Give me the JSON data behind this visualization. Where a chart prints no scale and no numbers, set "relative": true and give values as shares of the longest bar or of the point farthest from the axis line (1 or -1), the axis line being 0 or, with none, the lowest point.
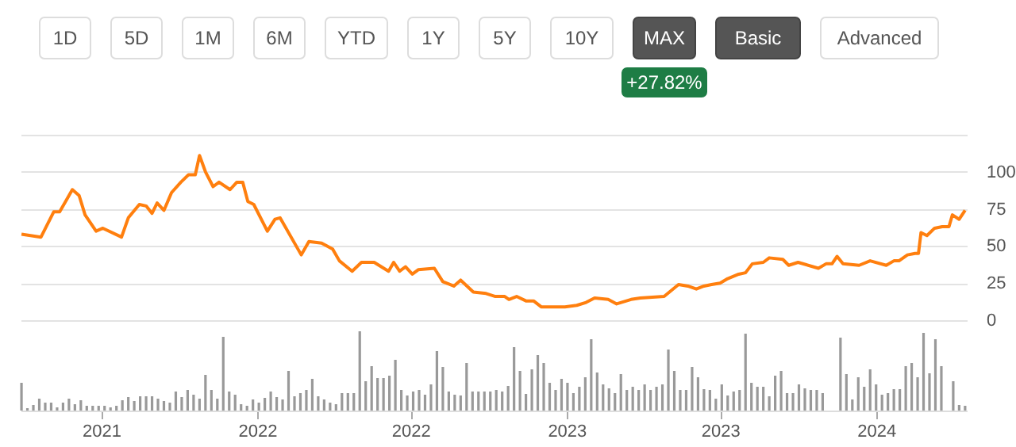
{
  "chart_data": [
    {
      "type": "line",
      "annotations": [
        "1D",
        "5D",
        "1M",
        "6M",
        "YTD",
        "1Y",
        "5Y",
        "10Y",
        "MAX",
        "Basic",
        "Advanced",
        "+27.82%"
      ],
      "x": [
        "2021-03-29",
        "2021-04-21",
        "2021-05-06",
        "2021-05-13",
        "2021-05-28",
        "2021-06-05",
        "2021-06-12",
        "2021-06-25",
        "2021-07-03",
        "2021-07-25",
        "2021-08-02",
        "2021-08-15",
        "2021-08-23",
        "2021-08-30",
        "2021-09-05",
        "2021-09-13",
        "2021-09-22",
        "2021-10-03",
        "2021-10-12",
        "2021-10-20",
        "2021-10-25",
        "2021-11-01",
        "2021-11-10",
        "2021-11-17",
        "2021-11-30",
        "2021-12-08",
        "2021-12-15",
        "2021-12-21",
        "2021-12-28",
        "2022-01-13",
        "2022-01-22",
        "2022-01-28",
        "2022-02-22",
        "2022-03-03",
        "2022-03-18",
        "2022-03-31",
        "2022-04-08",
        "2022-04-23",
        "2022-05-04",
        "2022-05-19",
        "2022-06-05",
        "2022-06-11",
        "2022-06-18",
        "2022-06-25",
        "2022-07-03",
        "2022-07-10",
        "2022-07-29",
        "2022-08-08",
        "2022-08-21",
        "2022-08-29",
        "2022-09-13",
        "2022-09-28",
        "2022-10-09",
        "2022-10-20",
        "2022-10-25",
        "2022-11-03",
        "2022-11-14",
        "2022-11-23",
        "2022-12-02",
        "2022-12-21",
        "2022-12-30",
        "2023-01-13",
        "2023-01-24",
        "2023-02-03",
        "2023-02-19",
        "2023-03-01",
        "2023-03-18",
        "2023-03-29",
        "2023-04-26",
        "2023-05-13",
        "2023-05-24",
        "2023-06-03",
        "2023-06-12",
        "2023-06-21",
        "2023-07-01",
        "2023-07-10",
        "2023-07-23",
        "2023-07-31",
        "2023-08-08",
        "2023-08-21",
        "2023-08-28",
        "2023-09-13",
        "2023-09-20",
        "2023-10-01",
        "2023-10-25",
        "2023-11-03",
        "2023-11-10",
        "2023-11-16",
        "2023-11-23",
        "2023-12-12",
        "2023-12-25",
        "2024-01-13",
        "2024-01-22",
        "2024-01-28",
        "2024-02-07",
        "2024-02-16",
        "2024-02-20",
        "2024-02-23",
        "2024-03-01",
        "2024-03-10",
        "2024-03-19",
        "2024-03-27",
        "2024-03-31",
        "2024-04-08",
        "2024-04-15"
      ],
      "series": [
        {
          "color": "#ff7f0e",
          "values": [
            58,
            56,
            73,
            73,
            88,
            84,
            71,
            60,
            62,
            56,
            69,
            78,
            77,
            72,
            79,
            74,
            86,
            93,
            98,
            98,
            111,
            100,
            90,
            93,
            88,
            93,
            93,
            80,
            78,
            60,
            68,
            69,
            44,
            53,
            52,
            48,
            40,
            33,
            39,
            39,
            33,
            39,
            33,
            36,
            31,
            34,
            35,
            26,
            23,
            27,
            19,
            18,
            16,
            16,
            14,
            16,
            13,
            13,
            9,
            9,
            9,
            10,
            12,
            15,
            14,
            11,
            14,
            15,
            16,
            24,
            23,
            21,
            23,
            24,
            25,
            28,
            31,
            32,
            38,
            39,
            42,
            41,
            37,
            39,
            35,
            38,
            38,
            43,
            38,
            37,
            40,
            37,
            40,
            40,
            44,
            45,
            45,
            59,
            57,
            62,
            63,
            63,
            71,
            68,
            74
          ]
        }
      ],
      "xlim": [
        "2021-03-28",
        "2024-04-17"
      ],
      "ylim": [
        0,
        125
      ],
      "yticks": [
        0,
        25,
        50,
        75,
        100,
        {
          "value": 125,
          "label": null
        }
      ],
      "grid": "y",
      "tick_labels": "y"
    },
    {
      "type": "bar",
      "relative": true,
      "xlim": [
        "2021-03-28",
        "2024-04-17"
      ],
      "xticks": [
        {
          "value": "2021-07-01",
          "label": "2021"
        },
        {
          "value": "2022-01-01",
          "label": "2022"
        },
        {
          "value": "2022-07-01",
          "label": "2022"
        },
        {
          "value": "2023-01-01",
          "label": "2023"
        },
        {
          "value": "2023-07-01",
          "label": "2023"
        },
        {
          "value": "2024-01-01",
          "label": "2024"
        }
      ],
      "tick_labels": "x",
      "x": [
        "2021-03-29",
        "2021-04-05",
        "2021-04-12",
        "2021-04-19",
        "2021-04-26",
        "2021-05-03",
        "2021-05-10",
        "2021-05-17",
        "2021-05-24",
        "2021-05-31",
        "2021-06-07",
        "2021-06-14",
        "2021-06-21",
        "2021-06-28",
        "2021-07-05",
        "2021-07-12",
        "2021-07-19",
        "2021-07-26",
        "2021-08-02",
        "2021-08-09",
        "2021-08-16",
        "2021-08-23",
        "2021-08-30",
        "2021-09-06",
        "2021-09-13",
        "2021-09-20",
        "2021-09-27",
        "2021-10-04",
        "2021-10-11",
        "2021-10-18",
        "2021-10-25",
        "2021-11-01",
        "2021-11-08",
        "2021-11-15",
        "2021-11-22",
        "2021-11-29",
        "2021-12-06",
        "2021-12-13",
        "2021-12-20",
        "2021-12-27",
        "2022-01-03",
        "2022-01-10",
        "2022-01-17",
        "2022-01-24",
        "2022-01-31",
        "2022-02-07",
        "2022-02-14",
        "2022-02-21",
        "2022-02-28",
        "2022-03-07",
        "2022-03-14",
        "2022-03-21",
        "2022-03-28",
        "2022-04-04",
        "2022-04-11",
        "2022-04-18",
        "2022-04-25",
        "2022-05-02",
        "2022-05-09",
        "2022-05-16",
        "2022-05-23",
        "2022-05-30",
        "2022-06-06",
        "2022-06-13",
        "2022-06-20",
        "2022-06-27",
        "2022-07-04",
        "2022-07-11",
        "2022-07-18",
        "2022-07-25",
        "2022-08-01",
        "2022-08-08",
        "2022-08-15",
        "2022-08-22",
        "2022-08-29",
        "2022-09-05",
        "2022-09-12",
        "2022-09-19",
        "2022-09-26",
        "2022-10-03",
        "2022-10-10",
        "2022-10-17",
        "2022-10-24",
        "2022-10-31",
        "2022-11-07",
        "2022-11-14",
        "2022-11-21",
        "2022-11-28",
        "2022-12-05",
        "2022-12-12",
        "2022-12-19",
        "2022-12-26",
        "2023-01-02",
        "2023-01-09",
        "2023-01-16",
        "2023-01-23",
        "2023-01-30",
        "2023-02-06",
        "2023-02-13",
        "2023-02-20",
        "2023-02-27",
        "2023-03-06",
        "2023-03-13",
        "2023-03-20",
        "2023-03-27",
        "2023-04-03",
        "2023-04-10",
        "2023-04-17",
        "2023-04-24",
        "2023-05-01",
        "2023-05-08",
        "2023-05-15",
        "2023-05-22",
        "2023-05-29",
        "2023-06-05",
        "2023-06-12",
        "2023-06-19",
        "2023-06-26",
        "2023-07-03",
        "2023-07-10",
        "2023-07-17",
        "2023-07-24",
        "2023-07-31",
        "2023-08-07",
        "2023-08-14",
        "2023-08-21",
        "2023-08-28",
        "2023-09-04",
        "2023-09-11",
        "2023-09-18",
        "2023-09-25",
        "2023-10-02",
        "2023-10-09",
        "2023-10-16",
        "2023-10-23",
        "2023-10-30",
        "2023-11-06",
        "2023-11-13",
        "2023-11-20",
        "2023-11-27",
        "2023-12-04",
        "2023-12-11",
        "2023-12-18",
        "2023-12-25",
        "2024-01-01",
        "2024-01-08",
        "2024-01-15",
        "2024-01-22",
        "2024-01-29",
        "2024-02-05",
        "2024-02-12",
        "2024-02-19",
        "2024-02-26",
        "2024-03-04",
        "2024-03-11",
        "2024-03-18",
        "2024-03-25",
        "2024-04-01",
        "2024-04-08",
        "2024-04-15"
      ],
      "series": [
        {
          "color": "#999999",
          "values": [
            0.35,
            0.03,
            0.07,
            0.15,
            0.1,
            0.1,
            0.04,
            0.1,
            0.15,
            0.08,
            0.13,
            0.06,
            0.06,
            0.06,
            0.06,
            0.04,
            0.06,
            0.13,
            0.17,
            0.12,
            0.18,
            0.18,
            0.18,
            0.15,
            0.12,
            0.1,
            0.24,
            0.17,
            0.26,
            0.2,
            0.15,
            0.45,
            0.26,
            0.15,
            0.93,
            0.24,
            0.2,
            0.08,
            0.06,
            0.14,
            0.1,
            0.16,
            0.24,
            0.17,
            0.14,
            0.5,
            0.18,
            0.22,
            0.26,
            0.4,
            0.18,
            0.14,
            0.1,
            0.08,
            0.22,
            0.22,
            0.22,
            1.0,
            0.37,
            0.56,
            0.41,
            0.41,
            0.44,
            0.64,
            0.26,
            0.19,
            0.24,
            0.26,
            0.2,
            0.33,
            0.75,
            0.55,
            0.24,
            0.2,
            0.19,
            0.6,
            0.24,
            0.24,
            0.24,
            0.24,
            0.26,
            0.24,
            0.31,
            0.8,
            0.5,
            0.21,
            0.52,
            0.7,
            0.6,
            0.35,
            0.26,
            0.4,
            0.35,
            0.22,
            0.3,
            0.42,
            0.9,
            0.48,
            0.33,
            0.28,
            0.22,
            0.46,
            0.26,
            0.3,
            0.26,
            0.33,
            0.26,
            0.3,
            0.33,
            0.77,
            0.5,
            0.26,
            0.26,
            0.55,
            0.42,
            0.27,
            0.26,
            0.15,
            0.33,
            0.19,
            0.24,
            0.26,
            0.97,
            0.35,
            0.3,
            0.3,
            0.18,
            0.44,
            0.5,
            0.22,
            0.22,
            0.33,
            0.28,
            0.26,
            0.26,
            0.22,
            null,
            null,
            0.92,
            0.46,
            0.14,
            0.42,
            0.3,
            0.52,
            0.33,
            0.2,
            0.22,
            0.27,
            0.27,
            0.56,
            0.6,
            0.42,
            0.98,
            0.47,
            0.9,
            0.56,
            null,
            0.37,
            0.07,
            0.06
          ]
        }
      ]
    }
  ]
}
